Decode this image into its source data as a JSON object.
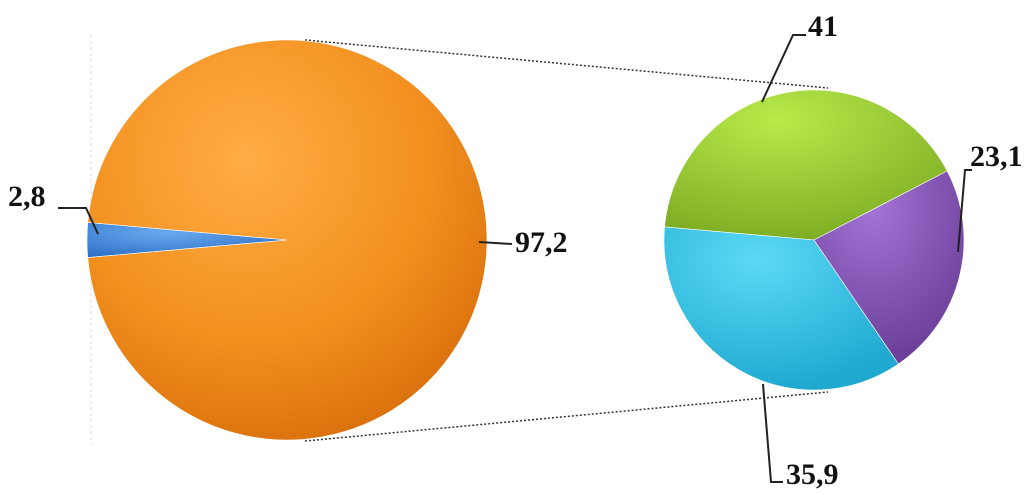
{
  "chart_data": {
    "type": "pie",
    "title": "",
    "pies": [
      {
        "name": "",
        "slices": [
          {
            "label": "2,8",
            "value": 2.8,
            "color": "#3d86df"
          },
          {
            "label": "97,2",
            "value": 97.2,
            "color": "#f2901f"
          }
        ]
      },
      {
        "name": "",
        "slices": [
          {
            "label": "41",
            "value": 41,
            "color": "#9ccd35"
          },
          {
            "label": "23,1",
            "value": 23.1,
            "color": "#8552b8"
          },
          {
            "label": "35,9",
            "value": 35.9,
            "color": "#2fc8ea"
          }
        ]
      }
    ],
    "legend": "none",
    "grid": false
  }
}
